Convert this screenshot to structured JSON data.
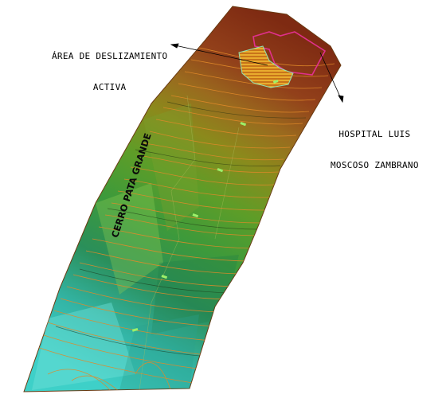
{
  "map": {
    "labels": {
      "landslide_line1": "ÁREA DE DESLIZAMIENTO",
      "landslide_line2": "ACTIVA",
      "hospital_line1": "HOSPITAL LUIS",
      "hospital_line2": "MOSCOSO ZAMBRANO",
      "hill_name": "CERRO PATA GRANDE"
    },
    "colors": {
      "summit": "#8b2e14",
      "upper_slope": "#a0581e",
      "mid_slope": "#8c8a1c",
      "green_slope": "#4f9a2a",
      "lower_slope": "#2b9158",
      "base": "#3ec7c0",
      "contour_lines": "#e08a2a",
      "hospital_outline": "#e0308c",
      "landslide_hatch": "#f2b21c"
    }
  }
}
